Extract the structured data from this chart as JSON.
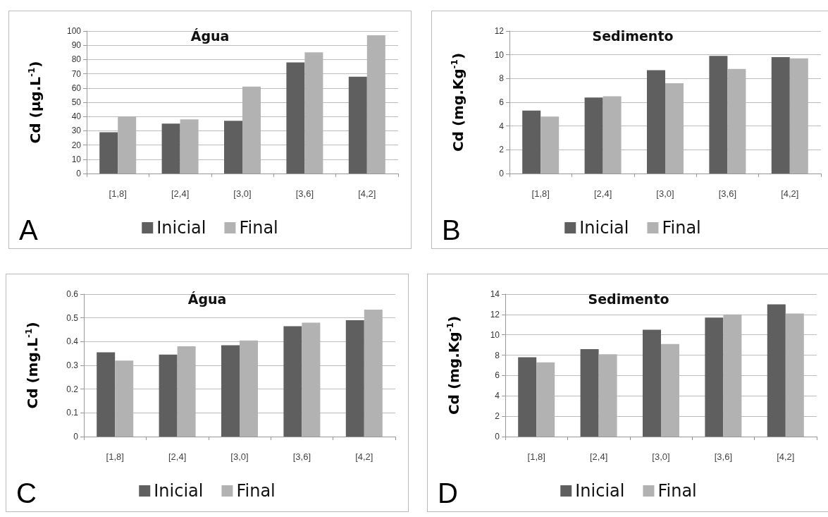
{
  "chart_data": [
    {
      "type": "bar",
      "title": "Água",
      "ylabel": "Cd (µg.L$^{-1}$)",
      "categories": [
        "[1,8]",
        "[2,4]",
        "[3,0]",
        "[3,6]",
        "[4,2]"
      ],
      "series": [
        {
          "name": "Inicial",
          "color": "#5f5f5f",
          "values": [
            29,
            35,
            37,
            78,
            68
          ]
        },
        {
          "name": "Final",
          "color": "#b2b2b2",
          "values": [
            40,
            38,
            61,
            85,
            97
          ]
        }
      ],
      "ylim": [
        0,
        100
      ],
      "yticks": [
        0,
        10,
        20,
        30,
        40,
        50,
        60,
        70,
        80,
        90,
        100
      ],
      "grid": "y",
      "legend": "bottom",
      "annotations": [
        "A"
      ]
    },
    {
      "type": "bar",
      "title": "Sedimento",
      "ylabel": "Cd (mg.Kg$^{-1}$)",
      "categories": [
        "[1,8]",
        "[2,4]",
        "[3,0]",
        "[3,6]",
        "[4,2]"
      ],
      "series": [
        {
          "name": "Inicial",
          "color": "#5f5f5f",
          "values": [
            5.3,
            6.4,
            8.7,
            9.9,
            9.8
          ]
        },
        {
          "name": "Final",
          "color": "#b2b2b2",
          "values": [
            4.8,
            6.5,
            7.6,
            8.8,
            9.7
          ]
        }
      ],
      "ylim": [
        0,
        12
      ],
      "yticks": [
        0,
        2,
        4,
        6,
        8,
        10,
        12
      ],
      "grid": "y",
      "legend": "bottom",
      "annotations": [
        "B"
      ]
    },
    {
      "type": "bar",
      "title": "Água",
      "ylabel": "Cd (mg.L$^{-1}$)",
      "categories": [
        "[1,8]",
        "[2,4]",
        "[3,0]",
        "[3,6]",
        "[4,2]"
      ],
      "series": [
        {
          "name": "Inicial",
          "color": "#5f5f5f",
          "values": [
            0.355,
            0.345,
            0.385,
            0.465,
            0.49
          ]
        },
        {
          "name": "Final",
          "color": "#b2b2b2",
          "values": [
            0.32,
            0.38,
            0.405,
            0.48,
            0.535
          ]
        }
      ],
      "ylim": [
        0,
        0.6
      ],
      "yticks": [
        0,
        0.1,
        0.2,
        0.3,
        0.4,
        0.5,
        0.6
      ],
      "grid": "y",
      "legend": "bottom",
      "annotations": [
        "C"
      ]
    },
    {
      "type": "bar",
      "title": "Sedimento",
      "ylabel": "Cd (mg.Kg$^{-1}$)",
      "categories": [
        "[1,8]",
        "[2,4]",
        "[3,0]",
        "[3,6]",
        "[4,2]"
      ],
      "series": [
        {
          "name": "Inicial",
          "color": "#5f5f5f",
          "values": [
            7.8,
            8.6,
            10.5,
            11.7,
            13.0
          ]
        },
        {
          "name": "Final",
          "color": "#b2b2b2",
          "values": [
            7.3,
            8.1,
            9.1,
            12.0,
            12.1
          ]
        }
      ],
      "ylim": [
        0,
        14
      ],
      "yticks": [
        0,
        2,
        4,
        6,
        8,
        10,
        12,
        14
      ],
      "grid": "y",
      "legend": "bottom",
      "annotations": [
        "D"
      ]
    }
  ]
}
